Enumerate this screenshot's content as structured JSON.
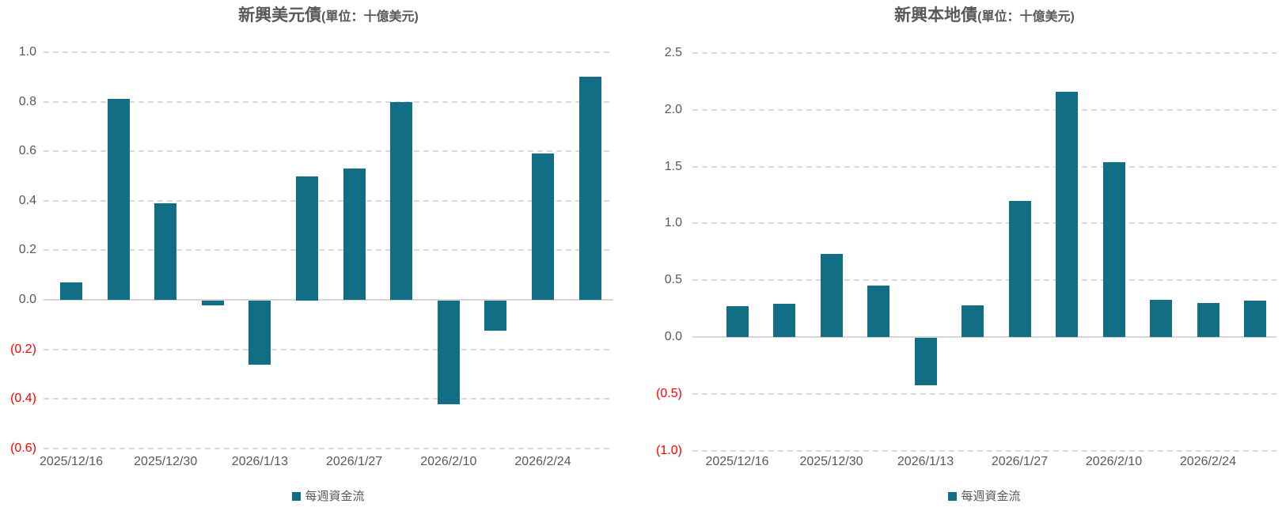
{
  "chart_data": [
    {
      "type": "bar",
      "title_main": "新興美元債",
      "title_unit": "(單位：十億美元)",
      "legend_label": "每週資金流",
      "legend_position": "bottom",
      "bar_color": "#116E85",
      "axis_label_color": "#595959",
      "negative_label_color": "#FF0000",
      "grid": "horizontal-dashed",
      "x_tick_labels": [
        "2025/12/16",
        "2025/12/30",
        "2026/1/13",
        "2026/1/27",
        "2026/2/10",
        "2026/2/24"
      ],
      "x_tick_every": 2,
      "values": [
        0.07,
        0.81,
        0.39,
        -0.02,
        -0.26,
        0.5,
        0.53,
        0.8,
        -0.42,
        -0.12,
        0.59,
        0.9
      ],
      "ylim": [
        -0.6,
        1.0
      ],
      "ytick_step": 0.2,
      "ytick_labels": [
        "1.0",
        "0.8",
        "0.6",
        "0.4",
        "0.2",
        "0.0",
        "(0.2)",
        "(0.4)",
        "(0.6)"
      ]
    },
    {
      "type": "bar",
      "title_main": "新興本地債",
      "title_unit": "(單位：十億美元)",
      "legend_label": "每週資金流",
      "legend_position": "bottom",
      "bar_color": "#116E85",
      "axis_label_color": "#595959",
      "negative_label_color": "#FF0000",
      "grid": "horizontal-dashed",
      "x_tick_labels": [
        "2025/12/16",
        "2025/12/30",
        "2026/1/13",
        "2026/1/27",
        "2026/2/10",
        "2026/2/24"
      ],
      "x_tick_every": 2,
      "values": [
        0.27,
        0.29,
        0.73,
        0.45,
        -0.42,
        0.28,
        1.2,
        2.16,
        1.54,
        0.33,
        0.3,
        0.32
      ],
      "ylim": [
        -1.0,
        2.5
      ],
      "ytick_step": 0.5,
      "ytick_labels": [
        "2.5",
        "2.0",
        "1.5",
        "1.0",
        "0.5",
        "0.0",
        "(0.5)",
        "(1.0)"
      ]
    }
  ]
}
